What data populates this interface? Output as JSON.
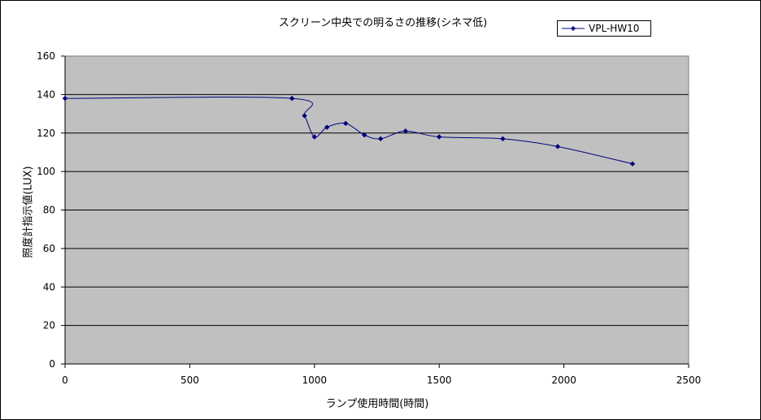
{
  "chart_data": {
    "type": "line",
    "title": "スクリーン中央での明るさの推移(シネマ低)",
    "xlabel": "ランプ使用時間(時間)",
    "ylabel": "照度計指示値(LUX)",
    "xlim": [
      0,
      2500
    ],
    "ylim": [
      0,
      160
    ],
    "x_ticks": [
      0,
      500,
      1000,
      1500,
      2000,
      2500
    ],
    "y_ticks": [
      0,
      20,
      40,
      60,
      80,
      100,
      120,
      140,
      160
    ],
    "grid": true,
    "legend": "top-right",
    "plot_background": "#c0c0c0",
    "series": [
      {
        "name": "VPL-HW10",
        "color": "#000080",
        "marker": "diamond",
        "smooth": true,
        "x": [
          0,
          910,
          960,
          1000,
          1050,
          1125,
          1200,
          1265,
          1365,
          1500,
          1755,
          1975,
          2275
        ],
        "y": [
          138,
          138,
          129,
          118,
          123,
          125,
          119,
          117,
          121,
          118,
          117,
          113,
          104
        ]
      }
    ]
  }
}
